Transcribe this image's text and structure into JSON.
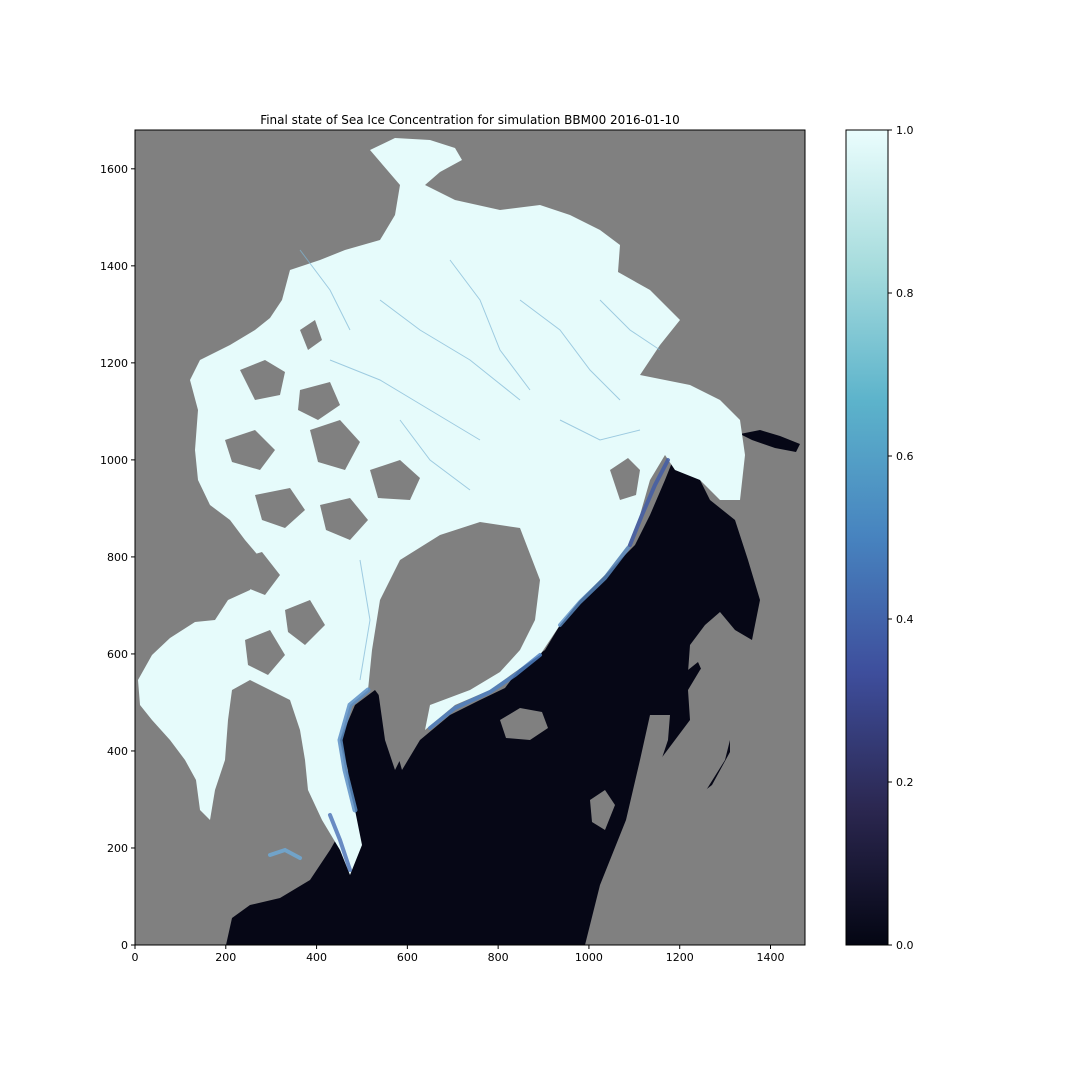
{
  "chart_data": {
    "type": "heatmap",
    "title": "Final state of Sea Ice Concentration for simulation BBM00 2016-01-10",
    "xlabel": "",
    "ylabel": "",
    "xlim": [
      0,
      1476
    ],
    "ylim": [
      0,
      1680
    ],
    "xticks": [
      0,
      200,
      400,
      600,
      800,
      1000,
      1200,
      1400
    ],
    "yticks": [
      0,
      200,
      400,
      600,
      800,
      1000,
      1200,
      1400,
      1600
    ],
    "colorbar": {
      "range": [
        0.0,
        1.0
      ],
      "ticks": [
        "0.0",
        "0.2",
        "0.4",
        "0.6",
        "0.8",
        "1.0"
      ],
      "colormap": "ice",
      "stops": [
        "#040613",
        "#2b2750",
        "#3e4e9c",
        "#4783bf",
        "#5cb3cb",
        "#a7dcdd",
        "#eafdfd"
      ]
    },
    "colors": {
      "land": "#808080",
      "open_water": "#060716",
      "pack_ice": "#e6fbfb",
      "marginal_ice": "#5d8fc6"
    },
    "grid": false,
    "legend": "none"
  }
}
